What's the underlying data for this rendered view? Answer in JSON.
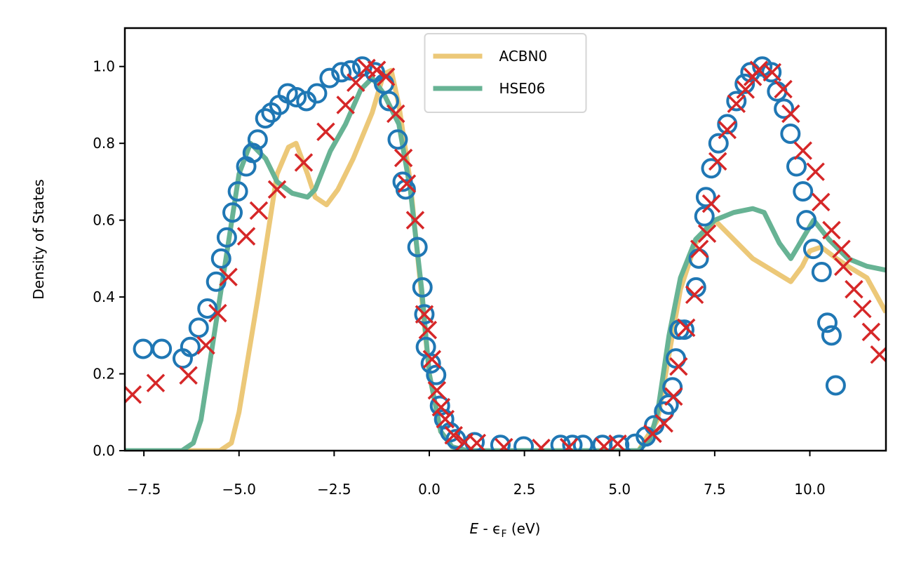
{
  "chart_data": {
    "type": "line",
    "ylabel": "Density of States",
    "xlabel": [
      "E",
      " - ϵ",
      "F",
      " (eV)"
    ],
    "xlim": [
      -8,
      12
    ],
    "ylim": [
      0,
      1.1
    ],
    "xticks": [
      {
        "value": -7.5,
        "label": "−7.5"
      },
      {
        "value": -5,
        "label": "−5.0"
      },
      {
        "value": -2.5,
        "label": "−2.5"
      },
      {
        "value": 0,
        "label": "0.0"
      },
      {
        "value": 2.5,
        "label": "2.5"
      },
      {
        "value": 5,
        "label": "5.0"
      },
      {
        "value": 7.5,
        "label": "7.5"
      },
      {
        "value": 10,
        "label": "10.0"
      }
    ],
    "yticks": [
      {
        "value": 0,
        "label": "0.0"
      },
      {
        "value": 0.2,
        "label": "0.2"
      },
      {
        "value": 0.4,
        "label": "0.4"
      },
      {
        "value": 0.6,
        "label": "0.6"
      },
      {
        "value": 0.8,
        "label": "0.8"
      },
      {
        "value": 1.0,
        "label": "1.0"
      }
    ],
    "legend": "upper center",
    "series": [
      {
        "name": "ACBN0",
        "color": "#ecc878",
        "marker": "line",
        "x": [
          -8,
          -5.5,
          -5.2,
          -5,
          -4.5,
          -4,
          -3.7,
          -3.5,
          -3.2,
          -3,
          -2.7,
          -2.4,
          -2,
          -1.5,
          -1.2,
          -1,
          -0.8,
          -0.5,
          -0.2,
          0,
          0.3,
          0.6,
          1,
          5.5,
          6,
          6.3,
          6.6,
          7,
          7.5,
          8,
          8.5,
          9,
          9.5,
          9.8,
          10,
          10.3,
          10.7,
          11,
          11.5,
          12
        ],
        "values": [
          0,
          0,
          0.02,
          0.1,
          0.4,
          0.72,
          0.79,
          0.8,
          0.72,
          0.66,
          0.64,
          0.68,
          0.76,
          0.88,
          0.98,
          0.99,
          0.9,
          0.7,
          0.4,
          0.2,
          0.05,
          0.01,
          0,
          0,
          0.08,
          0.25,
          0.42,
          0.54,
          0.6,
          0.55,
          0.5,
          0.47,
          0.44,
          0.48,
          0.52,
          0.53,
          0.5,
          0.48,
          0.45,
          0.36
        ]
      },
      {
        "name": "HSE06",
        "color": "#67b394",
        "marker": "line",
        "x": [
          -8,
          -6.5,
          -6.2,
          -6,
          -5.5,
          -5,
          -4.7,
          -4.3,
          -4,
          -3.6,
          -3.2,
          -3,
          -2.6,
          -2.2,
          -1.8,
          -1.5,
          -1.2,
          -0.8,
          -0.5,
          -0.2,
          0,
          0.3,
          0.6,
          1,
          5.5,
          5.8,
          6,
          6.3,
          6.6,
          7,
          7.5,
          8,
          8.5,
          8.8,
          9.2,
          9.5,
          9.8,
          10.1,
          10.5,
          11,
          11.5,
          12
        ],
        "values": [
          0,
          0,
          0.02,
          0.08,
          0.4,
          0.72,
          0.8,
          0.76,
          0.7,
          0.67,
          0.66,
          0.68,
          0.78,
          0.85,
          0.94,
          0.97,
          0.93,
          0.85,
          0.68,
          0.42,
          0.2,
          0.05,
          0.01,
          0,
          0,
          0.03,
          0.1,
          0.3,
          0.45,
          0.55,
          0.6,
          0.62,
          0.63,
          0.62,
          0.54,
          0.5,
          0.55,
          0.6,
          0.55,
          0.5,
          0.48,
          0.47
        ]
      },
      {
        "color": "#1f77b4",
        "marker": "circle",
        "x": [
          -7.52,
          -7.03,
          -6.48,
          -6.28,
          -6.06,
          -5.83,
          -5.6,
          -5.47,
          -5.32,
          -5.17,
          -5.03,
          -4.81,
          -4.64,
          -4.51,
          -4.31,
          -4.15,
          -3.94,
          -3.72,
          -3.49,
          -3.23,
          -2.95,
          -2.62,
          -2.31,
          -2.07,
          -1.76,
          -1.43,
          -1.19,
          -1.06,
          -0.83,
          -0.7,
          -0.62,
          -0.31,
          -0.18,
          -0.13,
          -0.09,
          0.04,
          0.18,
          0.28,
          0.39,
          0.55,
          0.7,
          1.19,
          1.87,
          2.48,
          3.45,
          3.76,
          4.04,
          4.55,
          4.99,
          5.41,
          5.69,
          5.91,
          6.17,
          6.29,
          6.39,
          6.48,
          6.57,
          6.7,
          7.01,
          7.08,
          7.23,
          7.27,
          7.41,
          7.6,
          7.83,
          8.07,
          8.29,
          8.44,
          8.75,
          8.99,
          9.14,
          9.32,
          9.49,
          9.65,
          9.82,
          9.91,
          10.09,
          10.31,
          10.46,
          10.57,
          10.68
        ],
        "values": [
          0.265,
          0.265,
          0.24,
          0.27,
          0.32,
          0.37,
          0.44,
          0.5,
          0.555,
          0.62,
          0.675,
          0.74,
          0.775,
          0.81,
          0.865,
          0.88,
          0.9,
          0.93,
          0.92,
          0.91,
          0.93,
          0.97,
          0.985,
          0.99,
          1.0,
          0.985,
          0.955,
          0.91,
          0.81,
          0.7,
          0.68,
          0.53,
          0.425,
          0.355,
          0.27,
          0.227,
          0.197,
          0.117,
          0.082,
          0.048,
          0.03,
          0.022,
          0.015,
          0.011,
          0.015,
          0.015,
          0.015,
          0.015,
          0.015,
          0.018,
          0.037,
          0.066,
          0.102,
          0.12,
          0.165,
          0.24,
          0.315,
          0.315,
          0.425,
          0.5,
          0.61,
          0.66,
          0.735,
          0.8,
          0.85,
          0.91,
          0.955,
          0.985,
          1.0,
          0.985,
          0.935,
          0.89,
          0.825,
          0.74,
          0.675,
          0.6,
          0.525,
          0.465,
          0.333,
          0.3,
          0.17
        ]
      },
      {
        "color": "#d62728",
        "marker": "cross",
        "x": [
          -7.8,
          -7.19,
          -6.33,
          -5.87,
          -5.56,
          -5.28,
          -4.81,
          -4.48,
          -4.0,
          -3.3,
          -2.72,
          -2.2,
          -1.93,
          -1.65,
          -1.38,
          -1.14,
          -0.88,
          -0.68,
          -0.59,
          -0.37,
          -0.13,
          -0.04,
          0.07,
          0.2,
          0.31,
          0.42,
          0.64,
          0.92,
          1.25,
          1.96,
          2.94,
          3.67,
          4.59,
          4.95,
          5.87,
          6.17,
          6.42,
          6.55,
          6.75,
          6.97,
          7.1,
          7.3,
          7.41,
          7.58,
          7.83,
          8.07,
          8.31,
          8.5,
          8.66,
          9.01,
          9.3,
          9.5,
          9.82,
          10.15,
          10.29,
          10.57,
          10.83,
          10.88,
          11.16,
          11.38,
          11.61,
          11.83
        ],
        "values": [
          0.146,
          0.176,
          0.196,
          0.274,
          0.358,
          0.452,
          0.558,
          0.625,
          0.68,
          0.75,
          0.83,
          0.9,
          0.958,
          0.996,
          0.991,
          0.973,
          0.877,
          0.762,
          0.695,
          0.6,
          0.355,
          0.314,
          0.238,
          0.157,
          0.113,
          0.082,
          0.04,
          0.022,
          0.02,
          0.009,
          0.007,
          0.009,
          0.011,
          0.018,
          0.044,
          0.071,
          0.141,
          0.219,
          0.32,
          0.406,
          0.525,
          0.565,
          0.643,
          0.753,
          0.835,
          0.903,
          0.94,
          0.973,
          0.991,
          0.985,
          0.941,
          0.877,
          0.781,
          0.726,
          0.647,
          0.574,
          0.525,
          0.479,
          0.42,
          0.369,
          0.309,
          0.25
        ]
      }
    ]
  }
}
